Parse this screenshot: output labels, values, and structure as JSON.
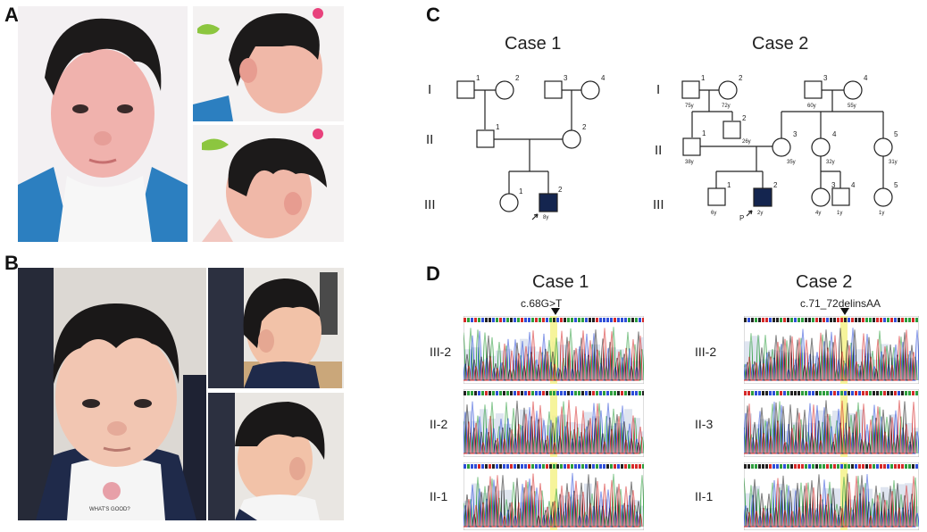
{
  "panels": {
    "a": "A",
    "b": "B",
    "c": "C",
    "d": "D"
  },
  "photo_labels": {
    "shirt_text": "WHAT'S GOOD?"
  },
  "pedigree": {
    "case1": {
      "title": "Case 1",
      "generations": [
        "I",
        "II",
        "III"
      ],
      "numbers": {
        "I1": "1",
        "I2": "2",
        "I3": "3",
        "I4": "4",
        "II1": "1",
        "II2": "2",
        "III1": "1",
        "III2": "2"
      },
      "ages": {
        "III2": "8y"
      }
    },
    "case2": {
      "title": "Case 2",
      "generations": [
        "I",
        "II",
        "III"
      ],
      "numbers": {
        "I1": "1",
        "I2": "2",
        "I3": "3",
        "I4": "4",
        "II1": "1",
        "II2": "2",
        "II3": "3",
        "II4": "4",
        "II5": "5",
        "III1": "1",
        "III2": "2",
        "III3": "3",
        "III4": "4",
        "III5": "5"
      },
      "ages": {
        "I1": "75y",
        "I2": "72y",
        "I3": "60y",
        "I4": "55y",
        "II1": "38y",
        "II2": "26y",
        "II3": "35y",
        "II4": "32y",
        "II5": "31y",
        "III1": "6y",
        "III2": "2y",
        "III3": "4y",
        "III4": "1y",
        "III5": "1y"
      },
      "proband": "P"
    }
  },
  "sequencing": {
    "case1": {
      "title": "Case 1",
      "variant": "c.68G>T",
      "rows": [
        "III-2",
        "II-2",
        "II-1"
      ]
    },
    "case2": {
      "title": "Case 2",
      "variant": "c.71_72delinsAA",
      "rows": [
        "III-2",
        "II-3",
        "II-1"
      ]
    }
  },
  "colors": {
    "affected": "#14254f",
    "highlight": "#f4f28a",
    "peak_a": "#2e9e3e",
    "peak_c": "#2f4fd8",
    "peak_g": "#222222",
    "peak_t": "#d62a2a",
    "quality_bar": "#c9d3e6"
  }
}
